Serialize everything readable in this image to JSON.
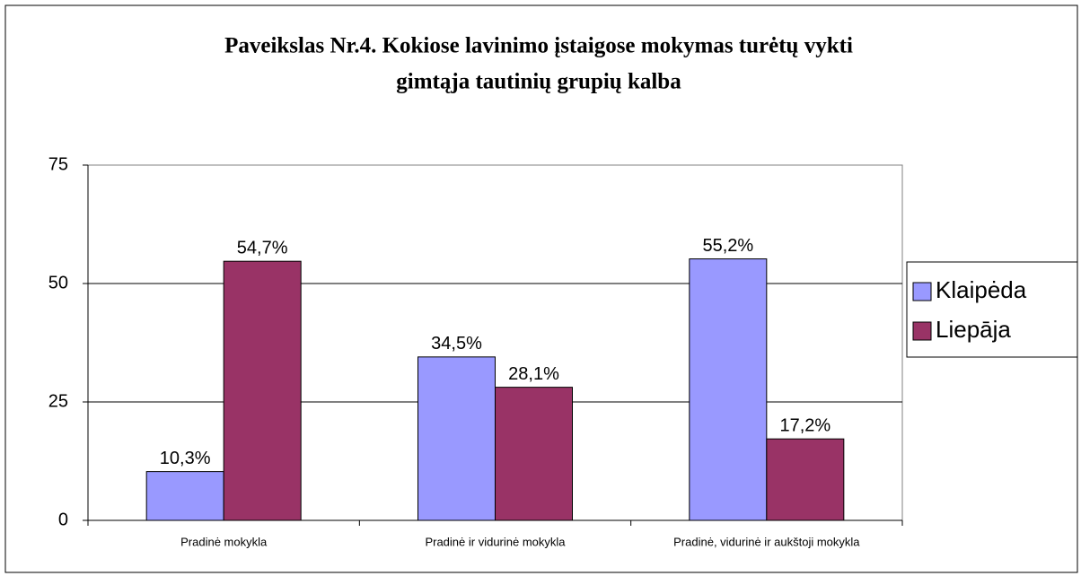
{
  "chart_data": {
    "type": "bar",
    "title": [
      "Paveikslas Nr.4. Kokiose lavinimo įstaigose mokymas turėtų vykti",
      "gimtąja tautinių grupių kalba"
    ],
    "categories": [
      "Pradinė mokykla",
      "Pradinė ir vidurinė mokykla",
      "Pradinė, vidurinė ir aukštoji mokykla"
    ],
    "series": [
      {
        "name": "Klaipėda",
        "color": "#9999ff",
        "values": [
          10.3,
          34.5,
          55.2
        ],
        "value_labels": [
          "10,3%",
          "34,5%",
          "55,2%"
        ]
      },
      {
        "name": "Liepāja",
        "color": "#993366",
        "values": [
          54.7,
          28.1,
          17.2
        ],
        "value_labels": [
          "54,7%",
          "28,1%",
          "17,2%"
        ]
      }
    ],
    "ylim": [
      0,
      75
    ],
    "yticks": [
      0,
      25,
      50,
      75
    ],
    "grid": true,
    "legend": "right"
  }
}
